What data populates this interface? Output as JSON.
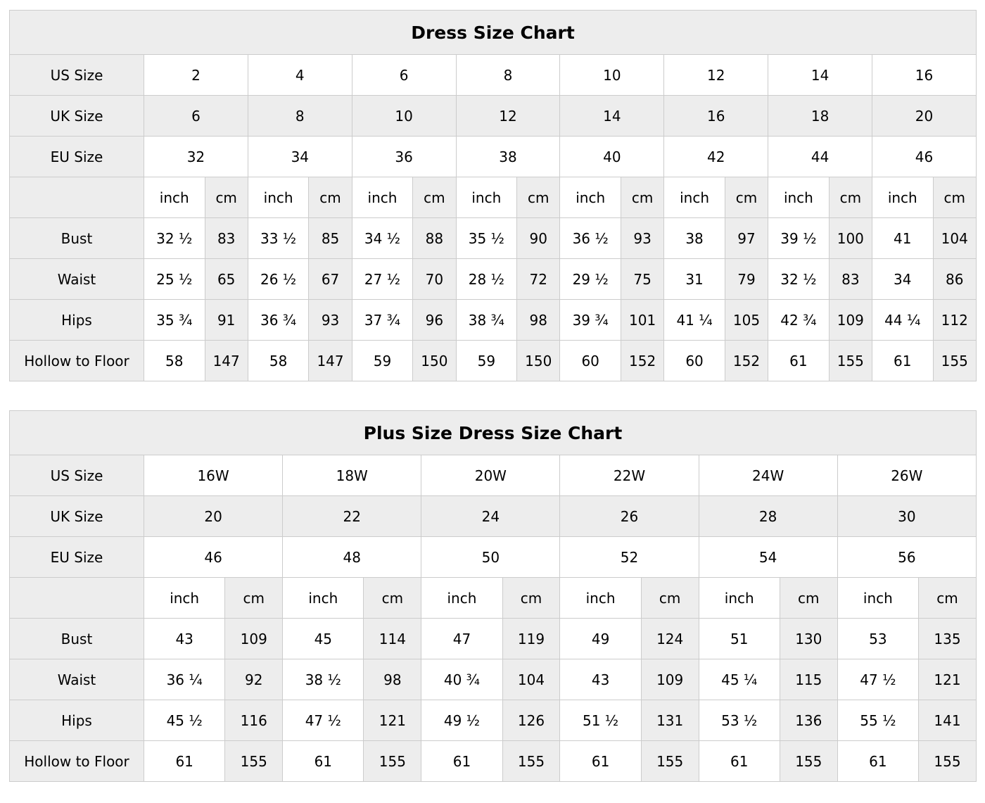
{
  "colors": {
    "shaded_cell": "#ededed",
    "white_cell": "#ffffff",
    "border": "#cccccc",
    "text": "#000000"
  },
  "chart_data": [
    {
      "type": "table",
      "title": "Dress Size Chart",
      "columns": 8,
      "unit_labels": [
        "inch",
        "cm"
      ],
      "size_rows": [
        {
          "label": "US Size",
          "shaded": false,
          "values": [
            "2",
            "4",
            "6",
            "8",
            "10",
            "12",
            "14",
            "16"
          ]
        },
        {
          "label": "UK Size",
          "shaded": true,
          "values": [
            "6",
            "8",
            "10",
            "12",
            "14",
            "16",
            "18",
            "20"
          ]
        },
        {
          "label": "EU Size",
          "shaded": false,
          "values": [
            "32",
            "34",
            "36",
            "38",
            "40",
            "42",
            "44",
            "46"
          ]
        }
      ],
      "measure_rows": [
        {
          "label": "Bust",
          "pairs": [
            [
              "32 ½",
              "83"
            ],
            [
              "33 ½",
              "85"
            ],
            [
              "34 ½",
              "88"
            ],
            [
              "35 ½",
              "90"
            ],
            [
              "36 ½",
              "93"
            ],
            [
              "38",
              "97"
            ],
            [
              "39 ½",
              "100"
            ],
            [
              "41",
              "104"
            ]
          ]
        },
        {
          "label": "Waist",
          "pairs": [
            [
              "25 ½",
              "65"
            ],
            [
              "26 ½",
              "67"
            ],
            [
              "27 ½",
              "70"
            ],
            [
              "28 ½",
              "72"
            ],
            [
              "29 ½",
              "75"
            ],
            [
              "31",
              "79"
            ],
            [
              "32 ½",
              "83"
            ],
            [
              "34",
              "86"
            ]
          ]
        },
        {
          "label": "Hips",
          "pairs": [
            [
              "35 ¾",
              "91"
            ],
            [
              "36 ¾",
              "93"
            ],
            [
              "37 ¾",
              "96"
            ],
            [
              "38 ¾",
              "98"
            ],
            [
              "39 ¾",
              "101"
            ],
            [
              "41 ¼",
              "105"
            ],
            [
              "42 ¾",
              "109"
            ],
            [
              "44 ¼",
              "112"
            ]
          ]
        },
        {
          "label": "Hollow to Floor",
          "pairs": [
            [
              "58",
              "147"
            ],
            [
              "58",
              "147"
            ],
            [
              "59",
              "150"
            ],
            [
              "59",
              "150"
            ],
            [
              "60",
              "152"
            ],
            [
              "60",
              "152"
            ],
            [
              "61",
              "155"
            ],
            [
              "61",
              "155"
            ]
          ]
        }
      ]
    },
    {
      "type": "table",
      "title": "Plus Size Dress Size Chart",
      "columns": 6,
      "unit_labels": [
        "inch",
        "cm"
      ],
      "size_rows": [
        {
          "label": "US Size",
          "shaded": false,
          "values": [
            "16W",
            "18W",
            "20W",
            "22W",
            "24W",
            "26W"
          ]
        },
        {
          "label": "UK Size",
          "shaded": true,
          "values": [
            "20",
            "22",
            "24",
            "26",
            "28",
            "30"
          ]
        },
        {
          "label": "EU Size",
          "shaded": false,
          "values": [
            "46",
            "48",
            "50",
            "52",
            "54",
            "56"
          ]
        }
      ],
      "measure_rows": [
        {
          "label": "Bust",
          "pairs": [
            [
              "43",
              "109"
            ],
            [
              "45",
              "114"
            ],
            [
              "47",
              "119"
            ],
            [
              "49",
              "124"
            ],
            [
              "51",
              "130"
            ],
            [
              "53",
              "135"
            ]
          ]
        },
        {
          "label": "Waist",
          "pairs": [
            [
              "36 ¼",
              "92"
            ],
            [
              "38 ½",
              "98"
            ],
            [
              "40 ¾",
              "104"
            ],
            [
              "43",
              "109"
            ],
            [
              "45 ¼",
              "115"
            ],
            [
              "47 ½",
              "121"
            ]
          ]
        },
        {
          "label": "Hips",
          "pairs": [
            [
              "45 ½",
              "116"
            ],
            [
              "47 ½",
              "121"
            ],
            [
              "49 ½",
              "126"
            ],
            [
              "51 ½",
              "131"
            ],
            [
              "53 ½",
              "136"
            ],
            [
              "55 ½",
              "141"
            ]
          ]
        },
        {
          "label": "Hollow to Floor",
          "pairs": [
            [
              "61",
              "155"
            ],
            [
              "61",
              "155"
            ],
            [
              "61",
              "155"
            ],
            [
              "61",
              "155"
            ],
            [
              "61",
              "155"
            ],
            [
              "61",
              "155"
            ]
          ]
        }
      ]
    }
  ]
}
